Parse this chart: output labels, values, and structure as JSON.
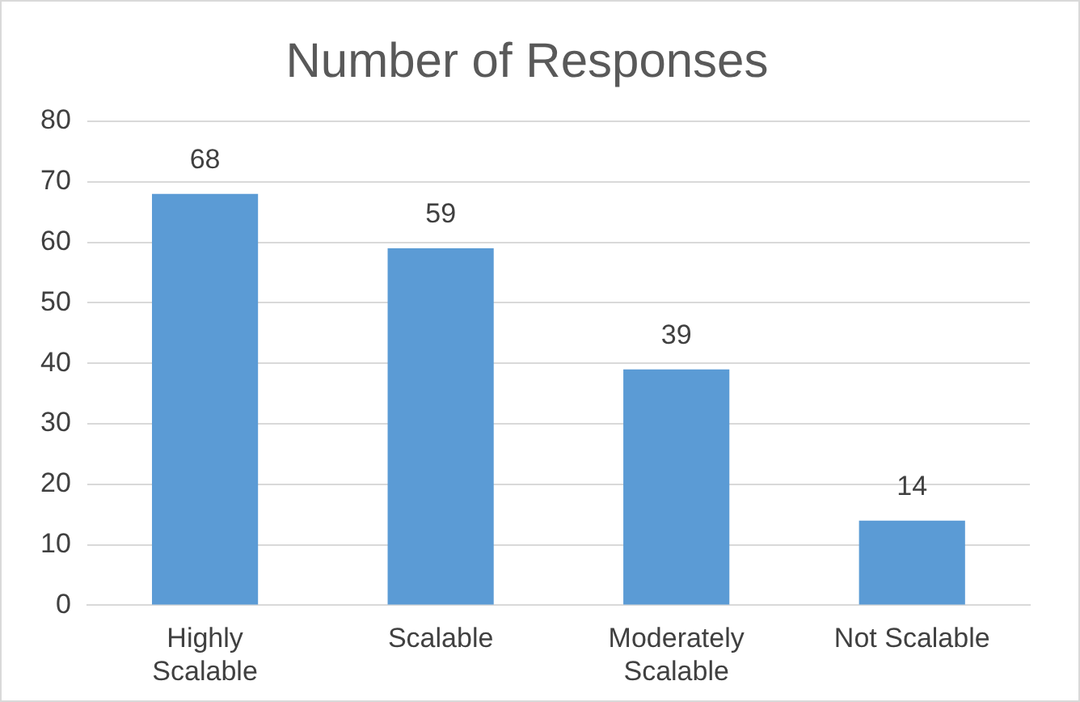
{
  "chart_data": {
    "type": "bar",
    "title": "Number of Responses",
    "categories": [
      "Highly Scalable",
      "Scalable",
      "Moderately Scalable",
      "Not Scalable"
    ],
    "values": [
      68,
      59,
      39,
      14
    ],
    "color": "#5b9bd5",
    "ylim": [
      0,
      80
    ],
    "yticks": [
      0,
      10,
      20,
      30,
      40,
      50,
      60,
      70,
      80
    ],
    "grid": "y",
    "data_labels": true,
    "legend": false
  }
}
